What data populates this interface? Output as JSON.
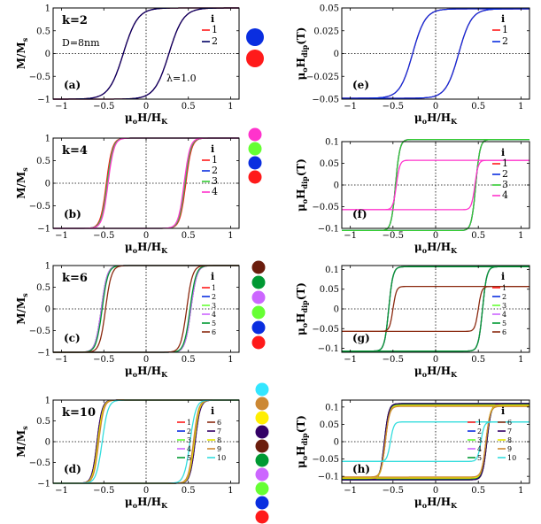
{
  "chart_data": [
    {
      "id": "a",
      "type": "line",
      "panel_label": "(a)",
      "annotations": {
        "k": "k=2",
        "d": "D=8nm",
        "lambda": "λ=1.0"
      },
      "ylabel": "M/M",
      "ylabel_sub": "s",
      "xlabel": "μ",
      "xlabel_parts": [
        "o",
        "H/H",
        "K"
      ],
      "xlim": [
        -1.1,
        1.1
      ],
      "ylim": [
        -1,
        1
      ],
      "xticks": [
        -1,
        -0.5,
        0,
        0.5,
        1
      ],
      "xtick_labels": [
        "−1",
        "−0.5",
        "0",
        "0.5",
        "1"
      ],
      "yticks": [
        -1,
        -0.5,
        0,
        0.5,
        1
      ],
      "ytick_labels": [
        "−1",
        "−0.5",
        "0",
        "0.5",
        "1"
      ],
      "legend_title": "i",
      "series": [
        {
          "name": "1",
          "color": "#ff1a1a",
          "hc": 0.27,
          "sat": 1.0,
          "w": 0.17
        },
        {
          "name": "2",
          "color": "#000066",
          "hc": 0.27,
          "sat": 1.0,
          "w": 0.17
        }
      ],
      "circles": [
        "#0a2ee0",
        "#ff1a1a"
      ]
    },
    {
      "id": "e",
      "type": "line",
      "panel_label": "(e)",
      "ylabel": "μ",
      "ylabel_parts": [
        "o",
        "H",
        "dip",
        "(T)"
      ],
      "xlabel": "μ",
      "xlabel_parts": [
        "o",
        "H/H",
        "K"
      ],
      "xlim": [
        -1.1,
        1.1
      ],
      "ylim": [
        -0.05,
        0.05
      ],
      "xticks": [
        -1,
        -0.5,
        0,
        0.5,
        1
      ],
      "xtick_labels": [
        "−1",
        "−0.5",
        "0",
        "0.5",
        "1"
      ],
      "yticks": [
        -0.05,
        -0.025,
        0,
        0.025,
        0.05
      ],
      "ytick_labels": [
        "−0.05",
        "−0.025",
        "0",
        "0.025",
        "0.05"
      ],
      "legend_title": "i",
      "series": [
        {
          "name": "1",
          "color": "#ff1a1a",
          "hc": 0.27,
          "sat": 0.049,
          "w": 0.15
        },
        {
          "name": "2",
          "color": "#0a2ee0",
          "hc": 0.27,
          "sat": 0.049,
          "w": 0.15
        }
      ]
    },
    {
      "id": "b",
      "type": "line",
      "panel_label": "(b)",
      "annotations": {
        "k": "k=4"
      },
      "ylabel": "M/M",
      "ylabel_sub": "s",
      "xlabel": "μ",
      "xlabel_parts": [
        "o",
        "H/H",
        "K"
      ],
      "xlim": [
        -1.1,
        1.1
      ],
      "ylim": [
        -1,
        1
      ],
      "xticks": [
        -1,
        -0.5,
        0,
        0.5,
        1
      ],
      "xtick_labels": [
        "−1",
        "−0.5",
        "0",
        "0.5",
        "1"
      ],
      "yticks": [
        -1,
        -0.5,
        0,
        0.5,
        1
      ],
      "ytick_labels": [
        "−1",
        "−0.5",
        "0",
        "0.5",
        "1"
      ],
      "legend_title": "i",
      "series": [
        {
          "name": "1",
          "color": "#ff1a1a",
          "hc": 0.47,
          "sat": 1.0,
          "w": 0.07
        },
        {
          "name": "2",
          "color": "#0a2ee0",
          "hc": 0.46,
          "sat": 1.0,
          "w": 0.07
        },
        {
          "name": "3",
          "color": "#33cc33",
          "hc": 0.46,
          "sat": 1.0,
          "w": 0.07
        },
        {
          "name": "4",
          "color": "#ff33cc",
          "hc": 0.45,
          "sat": 1.0,
          "w": 0.07
        }
      ],
      "circles": [
        "#ff33cc",
        "#66ff33",
        "#0a2ee0",
        "#ff1a1a"
      ]
    },
    {
      "id": "f",
      "type": "line",
      "panel_label": "(f)",
      "ylabel": "μ",
      "ylabel_parts": [
        "o",
        "H",
        "dip",
        "(T)"
      ],
      "xlabel": "μ",
      "xlabel_parts": [
        "o",
        "H/H",
        "K"
      ],
      "xlim": [
        -1.1,
        1.1
      ],
      "ylim": [
        -0.1,
        0.1
      ],
      "xticks": [
        -1,
        -0.5,
        0,
        0.5,
        1
      ],
      "xtick_labels": [
        "−1",
        "−0.5",
        "0",
        "0.5",
        "1"
      ],
      "yticks": [
        -0.1,
        -0.05,
        0,
        0.05,
        0.1
      ],
      "ytick_labels": [
        "−0.1",
        "−0.05",
        "0",
        "0.05",
        "0.1"
      ],
      "legend_title": "i",
      "series": [
        {
          "name": "1",
          "color": "#ff1a1a",
          "hc": 0.47,
          "sat": 0.105,
          "w": 0.05
        },
        {
          "name": "2",
          "color": "#0a2ee0",
          "hc": 0.47,
          "sat": 0.105,
          "w": 0.05
        },
        {
          "name": "3",
          "color": "#33cc33",
          "hc": 0.47,
          "sat": 0.105,
          "w": 0.05
        },
        {
          "name": "4",
          "color": "#ff33cc",
          "hc": 0.46,
          "sat": 0.057,
          "w": 0.04
        }
      ]
    },
    {
      "id": "c",
      "type": "line",
      "panel_label": "(c)",
      "annotations": {
        "k": "k=6"
      },
      "ylabel": "M/M",
      "ylabel_sub": "s",
      "xlabel": "μ",
      "xlabel_parts": [
        "o",
        "H/H",
        "K"
      ],
      "xlim": [
        -1.1,
        1.1
      ],
      "ylim": [
        -1,
        1
      ],
      "xticks": [
        -1,
        -0.5,
        0,
        0.5,
        1
      ],
      "xtick_labels": [
        "−1",
        "−0.5",
        "0",
        "0.5",
        "1"
      ],
      "yticks": [
        -1,
        -0.5,
        0,
        0.5,
        1
      ],
      "ytick_labels": [
        "−1",
        "−0.5",
        "0",
        "0.5",
        "1"
      ],
      "legend_title": "i",
      "series": [
        {
          "name": "1",
          "color": "#ff1a1a",
          "hc": 0.53,
          "sat": 1.0,
          "w": 0.07
        },
        {
          "name": "2",
          "color": "#0a2ee0",
          "hc": 0.53,
          "sat": 1.0,
          "w": 0.07
        },
        {
          "name": "3",
          "color": "#66ff33",
          "hc": 0.53,
          "sat": 1.0,
          "w": 0.07
        },
        {
          "name": "4",
          "color": "#cc66ff",
          "hc": 0.53,
          "sat": 1.0,
          "w": 0.07
        },
        {
          "name": "5",
          "color": "#009933",
          "hc": 0.52,
          "sat": 1.0,
          "w": 0.07
        },
        {
          "name": "6",
          "color": "#8b2a10",
          "hc": 0.48,
          "sat": 1.0,
          "w": 0.07
        }
      ],
      "circles": [
        "#6b1d0d",
        "#009933",
        "#cc66ff",
        "#66ff33",
        "#0a2ee0",
        "#ff1a1a"
      ]
    },
    {
      "id": "g",
      "type": "line",
      "panel_label": "(g)",
      "ylabel": "μ",
      "ylabel_parts": [
        "o",
        "H",
        "dip",
        "(T)"
      ],
      "xlabel": "μ",
      "xlabel_parts": [
        "o",
        "H/H",
        "K"
      ],
      "xlim": [
        -1.1,
        1.1
      ],
      "ylim": [
        -0.11,
        0.11
      ],
      "xticks": [
        -1,
        -0.5,
        0,
        0.5,
        1
      ],
      "xtick_labels": [
        "−1",
        "−0.5",
        "0",
        "0.5",
        "1"
      ],
      "yticks": [
        -0.1,
        -0.05,
        0,
        0.05,
        0.1
      ],
      "ytick_labels": [
        "−0.1",
        "−0.05",
        "0",
        "0.05",
        "0.1"
      ],
      "legend_title": "i",
      "series": [
        {
          "name": "1",
          "color": "#ff1a1a",
          "hc": 0.55,
          "sat": 0.107,
          "w": 0.05
        },
        {
          "name": "2",
          "color": "#0a2ee0",
          "hc": 0.55,
          "sat": 0.107,
          "w": 0.05
        },
        {
          "name": "3",
          "color": "#66ff33",
          "hc": 0.55,
          "sat": 0.107,
          "w": 0.05
        },
        {
          "name": "4",
          "color": "#cc66ff",
          "hc": 0.55,
          "sat": 0.107,
          "w": 0.05
        },
        {
          "name": "5",
          "color": "#009933",
          "hc": 0.55,
          "sat": 0.107,
          "w": 0.05
        },
        {
          "name": "6",
          "color": "#8b2a10",
          "hc": 0.5,
          "sat": 0.057,
          "w": 0.04
        }
      ]
    },
    {
      "id": "d",
      "type": "line",
      "panel_label": "(d)",
      "annotations": {
        "k": "k=10"
      },
      "ylabel": "M/M",
      "ylabel_sub": "s",
      "xlabel": "μ",
      "xlabel_parts": [
        "o",
        "H/H",
        "K"
      ],
      "xlim": [
        -1.1,
        1.1
      ],
      "ylim": [
        -1,
        1
      ],
      "xticks": [
        -1,
        -0.5,
        0,
        0.5,
        1
      ],
      "xtick_labels": [
        "−1",
        "−0.5",
        "0",
        "0.5",
        "1"
      ],
      "yticks": [
        -1,
        -0.5,
        0,
        0.5,
        1
      ],
      "ytick_labels": [
        "−1",
        "−0.5",
        "0",
        "0.5",
        "1"
      ],
      "legend_title": "i",
      "series": [
        {
          "name": "1",
          "color": "#ff1a1a",
          "hc": 0.58,
          "sat": 1.0,
          "w": 0.06
        },
        {
          "name": "2",
          "color": "#0a2ee0",
          "hc": 0.58,
          "sat": 1.0,
          "w": 0.06
        },
        {
          "name": "3",
          "color": "#66ff33",
          "hc": 0.58,
          "sat": 1.0,
          "w": 0.06
        },
        {
          "name": "4",
          "color": "#cc66ff",
          "hc": 0.58,
          "sat": 1.0,
          "w": 0.06
        },
        {
          "name": "5",
          "color": "#009933",
          "hc": 0.57,
          "sat": 1.0,
          "w": 0.06
        },
        {
          "name": "6",
          "color": "#8b2a10",
          "hc": 0.57,
          "sat": 1.0,
          "w": 0.06
        },
        {
          "name": "7",
          "color": "#330066",
          "hc": 0.58,
          "sat": 1.0,
          "w": 0.06
        },
        {
          "name": "8",
          "color": "#e6e600",
          "hc": 0.57,
          "sat": 1.0,
          "w": 0.06
        },
        {
          "name": "9",
          "color": "#cc8833",
          "hc": 0.56,
          "sat": 1.0,
          "w": 0.06
        },
        {
          "name": "10",
          "color": "#33dddd",
          "hc": 0.52,
          "sat": 1.0,
          "w": 0.07
        }
      ],
      "circles": [
        "#33e6ff",
        "#cc8833",
        "#ffee00",
        "#330066",
        "#6b1d0d",
        "#009933",
        "#cc66ff",
        "#66ff33",
        "#0a2ee0",
        "#ff1a1a"
      ]
    },
    {
      "id": "h",
      "type": "line",
      "panel_label": "(h)",
      "ylabel": "μ",
      "ylabel_parts": [
        "o",
        "H",
        "dip",
        "(T)"
      ],
      "xlabel": "μ",
      "xlabel_parts": [
        "o",
        "H/H",
        "K"
      ],
      "xlim": [
        -1.1,
        1.1
      ],
      "ylim": [
        -0.12,
        0.12
      ],
      "xticks": [
        -1,
        -0.5,
        0,
        0.5,
        1
      ],
      "xtick_labels": [
        "−1",
        "−0.5",
        "0",
        "0.5",
        "1"
      ],
      "yticks": [
        -0.1,
        -0.05,
        0,
        0.05,
        0.1
      ],
      "ytick_labels": [
        "−0.1",
        "−0.05",
        "0",
        "0.05",
        "0.1"
      ],
      "legend_title": "i",
      "series": [
        {
          "name": "1",
          "color": "#ff1a1a",
          "hc": 0.6,
          "sat": 0.11,
          "w": 0.05
        },
        {
          "name": "2",
          "color": "#0a2ee0",
          "hc": 0.6,
          "sat": 0.11,
          "w": 0.05
        },
        {
          "name": "3",
          "color": "#66ff33",
          "hc": 0.6,
          "sat": 0.11,
          "w": 0.05
        },
        {
          "name": "4",
          "color": "#cc66ff",
          "hc": 0.6,
          "sat": 0.108,
          "w": 0.05
        },
        {
          "name": "5",
          "color": "#009933",
          "hc": 0.6,
          "sat": 0.108,
          "w": 0.05
        },
        {
          "name": "6",
          "color": "#8b2a10",
          "hc": 0.59,
          "sat": 0.105,
          "w": 0.05
        },
        {
          "name": "7",
          "color": "#330066",
          "hc": 0.6,
          "sat": 0.11,
          "w": 0.05
        },
        {
          "name": "8",
          "color": "#e6e600",
          "hc": 0.59,
          "sat": 0.105,
          "w": 0.05
        },
        {
          "name": "9",
          "color": "#cc8833",
          "hc": 0.59,
          "sat": 0.102,
          "w": 0.05
        },
        {
          "name": "10",
          "color": "#33dddd",
          "hc": 0.53,
          "sat": 0.057,
          "w": 0.04
        }
      ]
    }
  ]
}
